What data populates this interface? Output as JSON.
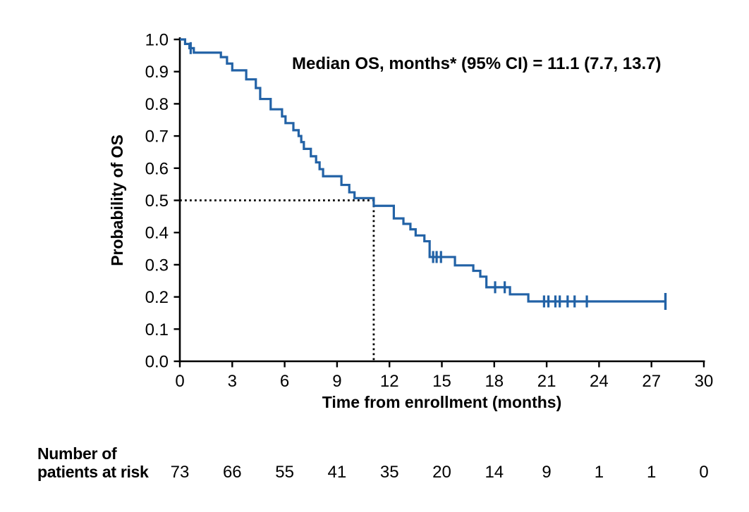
{
  "figure": {
    "background": "#ffffff"
  },
  "chart_data": {
    "type": "line",
    "variant": "kaplan_meier_step_curve",
    "annotation": "Median OS, months* (95% CI) = 11.1 (7.7, 13.7)",
    "xlabel": "Time from enrollment (months)",
    "ylabel": "Probability of OS",
    "xlim": [
      0,
      30
    ],
    "ylim": [
      0.0,
      1.0
    ],
    "x_ticks": [
      0,
      3,
      6,
      9,
      12,
      15,
      18,
      21,
      24,
      27,
      30
    ],
    "y_tick_labels": [
      "0.0",
      "0.1",
      "0.2",
      "0.3",
      "0.4",
      "0.5",
      "0.6",
      "0.7",
      "0.8",
      "0.9",
      "1.0"
    ],
    "grid": false,
    "legend_position": "none",
    "median_reference": {
      "time_months": 11.1,
      "probability": 0.5,
      "ci_lower_months": 7.7,
      "ci_upper_months": 13.7,
      "style": "dotted"
    },
    "series": [
      {
        "name": "Overall survival",
        "color": "#2262a6",
        "step_points": [
          [
            0.0,
            1.0
          ],
          [
            0.3,
            0.986
          ],
          [
            0.55,
            0.973
          ],
          [
            0.8,
            0.959
          ],
          [
            2.35,
            0.945
          ],
          [
            2.7,
            0.925
          ],
          [
            3.0,
            0.904
          ],
          [
            3.8,
            0.876
          ],
          [
            4.35,
            0.849
          ],
          [
            4.6,
            0.815
          ],
          [
            5.2,
            0.783
          ],
          [
            5.85,
            0.761
          ],
          [
            6.05,
            0.74
          ],
          [
            6.5,
            0.718
          ],
          [
            6.8,
            0.7
          ],
          [
            6.95,
            0.681
          ],
          [
            7.1,
            0.66
          ],
          [
            7.5,
            0.637
          ],
          [
            7.8,
            0.618
          ],
          [
            8.0,
            0.597
          ],
          [
            8.2,
            0.575
          ],
          [
            9.25,
            0.548
          ],
          [
            9.7,
            0.525
          ],
          [
            10.0,
            0.507
          ],
          [
            11.1,
            0.483
          ],
          [
            12.25,
            0.444
          ],
          [
            12.8,
            0.427
          ],
          [
            13.2,
            0.41
          ],
          [
            13.5,
            0.391
          ],
          [
            14.0,
            0.373
          ],
          [
            14.3,
            0.324
          ],
          [
            15.75,
            0.298
          ],
          [
            16.8,
            0.281
          ],
          [
            17.2,
            0.263
          ],
          [
            17.55,
            0.23
          ],
          [
            18.9,
            0.208
          ],
          [
            19.95,
            0.186
          ]
        ],
        "end_time": 27.8,
        "censor_marks": [
          [
            0.62,
            0.973
          ],
          [
            14.5,
            0.324
          ],
          [
            14.7,
            0.324
          ],
          [
            14.95,
            0.324
          ],
          [
            18.05,
            0.23
          ],
          [
            18.6,
            0.23
          ],
          [
            20.85,
            0.186
          ],
          [
            21.1,
            0.186
          ],
          [
            21.5,
            0.186
          ],
          [
            21.75,
            0.186
          ],
          [
            22.2,
            0.186
          ],
          [
            22.6,
            0.186
          ],
          [
            23.3,
            0.186
          ]
        ],
        "terminal_censor": [
          27.8,
          0.186
        ]
      }
    ]
  },
  "risk_table": {
    "label_line1": "Number of",
    "label_line2": "patients at risk",
    "time_points": [
      0,
      3,
      6,
      9,
      12,
      15,
      18,
      21,
      24,
      27,
      30
    ],
    "values": [
      73,
      66,
      55,
      41,
      35,
      20,
      14,
      9,
      1,
      1,
      0
    ]
  },
  "colors": {
    "curve": "#2262a6",
    "axis": "#000000",
    "text": "#000000",
    "reference_line": "#000000",
    "background": "#ffffff"
  }
}
